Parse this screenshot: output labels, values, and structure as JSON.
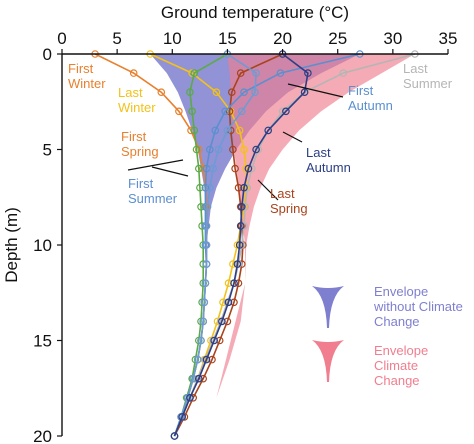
{
  "chart_data": {
    "type": "line",
    "title": "",
    "xlabel": "Ground temperature (°C)",
    "ylabel": "Depth (m)",
    "xlim": [
      0,
      35
    ],
    "ylim": [
      20,
      0
    ],
    "x_ticks": [
      "0",
      "5",
      "10",
      "15",
      "20",
      "25",
      "30",
      "35"
    ],
    "y_ticks": [
      "0",
      "5",
      "10",
      "15",
      "20"
    ],
    "x_axis_position": "top",
    "y_axis_inverted": true,
    "grid": false,
    "legend_position": "right",
    "envelopes": [
      {
        "label": "Envelope without Climate Change",
        "color": "#7f7fcf",
        "left": [
          [
            8,
            0
          ],
          [
            9.5,
            1
          ],
          [
            10.5,
            2
          ],
          [
            11.2,
            3
          ],
          [
            11.8,
            4
          ],
          [
            12.3,
            5
          ],
          [
            12.6,
            6
          ],
          [
            12.9,
            7
          ],
          [
            13.0,
            8
          ]
        ],
        "right": [
          [
            27,
            0
          ],
          [
            23.5,
            1
          ],
          [
            20.5,
            2
          ],
          [
            18.5,
            3
          ],
          [
            17.0,
            4
          ],
          [
            15.8,
            5
          ],
          [
            14.8,
            6
          ],
          [
            14.0,
            7
          ],
          [
            13.5,
            8
          ],
          [
            13.2,
            9.5
          ],
          [
            13.0,
            11
          ]
        ]
      },
      {
        "label": "Envelope Climate Change",
        "color": "#f07e8e",
        "left": [
          [
            15,
            0
          ],
          [
            15.2,
            1
          ],
          [
            15.3,
            2
          ],
          [
            15.4,
            3
          ],
          [
            15.5,
            4
          ],
          [
            15.6,
            5
          ],
          [
            15.8,
            6
          ],
          [
            16.0,
            7
          ],
          [
            16.2,
            8
          ],
          [
            16.4,
            9
          ],
          [
            16.6,
            10
          ],
          [
            16.6,
            12
          ],
          [
            16.2,
            14
          ],
          [
            15.2,
            16
          ],
          [
            14.0,
            18
          ]
        ],
        "right": [
          [
            32,
            0
          ],
          [
            29,
            1
          ],
          [
            26,
            2
          ],
          [
            23.5,
            3
          ],
          [
            21.5,
            4
          ],
          [
            20.0,
            5
          ],
          [
            18.8,
            6
          ],
          [
            18.0,
            7
          ],
          [
            17.4,
            8
          ],
          [
            17.0,
            9
          ],
          [
            16.7,
            10
          ],
          [
            16.6,
            12
          ]
        ]
      }
    ],
    "series": [
      {
        "name": "First Winter",
        "color": "#e8802e",
        "x": [
          3,
          6.5,
          9.0,
          10.6,
          11.7,
          12.4,
          12.8,
          13.0,
          13.1,
          13.1,
          13.1,
          13.1,
          13.0,
          12.9,
          12.8,
          12.6,
          12.3,
          11.9,
          11.4,
          10.8,
          10.2
        ],
        "y": [
          0,
          1,
          2,
          3,
          4,
          5,
          6,
          7,
          8,
          9,
          10,
          11,
          12,
          13,
          14,
          15,
          16,
          17,
          18,
          19,
          20
        ]
      },
      {
        "name": "Last Winter",
        "color": "#f2c21b",
        "x": [
          8,
          11.8,
          14.0,
          15.3,
          16.1,
          16.5,
          16.7,
          16.7,
          16.5,
          16.2,
          15.9,
          15.5,
          15.1,
          14.6,
          14.1,
          13.5,
          12.9,
          12.3,
          11.6,
          10.9,
          10.2
        ],
        "y": [
          0,
          1,
          2,
          3,
          4,
          5,
          6,
          7,
          8,
          9,
          10,
          11,
          12,
          13,
          14,
          15,
          16,
          17,
          18,
          19,
          20
        ]
      },
      {
        "name": "First Spring",
        "color": "#5aab47",
        "x": [
          15,
          12.0,
          11.6,
          11.8,
          12.0,
          12.2,
          12.4,
          12.5,
          12.6,
          12.7,
          12.8,
          12.8,
          12.8,
          12.7,
          12.6,
          12.4,
          12.1,
          11.8,
          11.3,
          10.8,
          10.2
        ],
        "y": [
          0,
          1,
          2,
          3,
          4,
          5,
          6,
          7,
          8,
          9,
          10,
          11,
          12,
          13,
          14,
          15,
          16,
          17,
          18,
          19,
          20
        ]
      },
      {
        "name": "Last Spring",
        "color": "#a8431c",
        "x": [
          20,
          16.2,
          15.4,
          15.2,
          15.3,
          15.5,
          15.7,
          16.0,
          16.2,
          16.3,
          16.4,
          16.3,
          16.0,
          15.6,
          15.0,
          14.3,
          13.6,
          12.8,
          11.9,
          11.1,
          10.2
        ],
        "y": [
          0,
          1,
          2,
          3,
          4,
          5,
          6,
          7,
          8,
          9,
          10,
          11,
          12,
          13,
          14,
          15,
          16,
          17,
          18,
          19,
          20
        ]
      },
      {
        "name": "First Summer",
        "color": "#5b8fcf",
        "x": [
          27,
          19.8,
          16.5,
          14.8,
          13.9,
          13.4,
          13.1,
          13.0,
          13.0,
          13.0,
          13.0,
          13.1,
          13.0,
          12.9,
          12.8,
          12.6,
          12.3,
          11.9,
          11.4,
          10.8,
          10.2
        ],
        "y": [
          0,
          1,
          2,
          3,
          4,
          5,
          6,
          7,
          8,
          9,
          10,
          11,
          12,
          13,
          14,
          15,
          16,
          17,
          18,
          19,
          20
        ]
      },
      {
        "name": "Last Summer",
        "color": "#b5b5b5",
        "x": [
          32,
          25.5,
          22.0,
          20.0,
          18.7,
          17.8,
          17.2,
          16.8,
          16.6,
          16.5,
          16.3,
          16.0,
          15.6,
          15.0,
          14.4,
          13.7,
          13.0,
          12.3,
          11.6,
          10.9,
          10.2
        ],
        "y": [
          0,
          1,
          2,
          3,
          4,
          5,
          6,
          7,
          8,
          9,
          10,
          11,
          12,
          13,
          14,
          15,
          16,
          17,
          18,
          19,
          20
        ]
      },
      {
        "name": "First Autumn",
        "color": "#6e9bd3",
        "x": [
          15,
          17.6,
          17.5,
          16.3,
          15.0,
          14.2,
          13.7,
          13.4,
          13.2,
          13.1,
          13.1,
          13.1,
          13.0,
          12.9,
          12.8,
          12.6,
          12.3,
          11.9,
          11.4,
          10.8,
          10.2
        ],
        "y": [
          0,
          1,
          2,
          3,
          4,
          5,
          6,
          7,
          8,
          9,
          10,
          11,
          12,
          13,
          14,
          15,
          16,
          17,
          18,
          19,
          20
        ]
      },
      {
        "name": "Last Autumn",
        "color": "#2c3e85",
        "x": [
          20,
          22.3,
          22.0,
          20.3,
          18.7,
          17.6,
          16.9,
          16.5,
          16.3,
          16.2,
          16.1,
          15.9,
          15.6,
          15.1,
          14.5,
          13.8,
          13.1,
          12.4,
          11.6,
          10.9,
          10.2
        ],
        "y": [
          0,
          1,
          2,
          3,
          4,
          5,
          6,
          7,
          8,
          9,
          10,
          11,
          12,
          13,
          14,
          15,
          16,
          17,
          18,
          19,
          20
        ]
      }
    ],
    "annotations": [
      {
        "lines": [
          "First",
          "Winter"
        ],
        "color": "#e8802e",
        "series": "First Winter"
      },
      {
        "lines": [
          "Last",
          "Winter"
        ],
        "color": "#f2c21b",
        "series": "Last Winter"
      },
      {
        "lines": [
          "First",
          "Spring"
        ],
        "color": "#e8802e",
        "series": "First Spring"
      },
      {
        "lines": [
          "First",
          "Summer"
        ],
        "color": "#5b8fcf",
        "series": "First Summer"
      },
      {
        "lines": [
          "Last",
          "Spring"
        ],
        "color": "#a8431c",
        "series": "Last Spring"
      },
      {
        "lines": [
          "Last",
          "Autumn"
        ],
        "color": "#2c3e85",
        "series": "Last Autumn"
      },
      {
        "lines": [
          "First",
          "Autumn"
        ],
        "color": "#5b8fcf",
        "series": "First Autumn"
      },
      {
        "lines": [
          "Last",
          "Summer"
        ],
        "color": "#b5b5b5",
        "series": "Last Summer"
      }
    ],
    "legend": [
      {
        "lines": [
          "Envelope",
          "without Climate",
          "Change"
        ],
        "color": "#7f7fcf",
        "text_color": "#7f7fcf"
      },
      {
        "lines": [
          "Envelope",
          "Climate",
          "Change"
        ],
        "color": "#f07e8e",
        "text_color": "#f07e8e"
      }
    ]
  }
}
